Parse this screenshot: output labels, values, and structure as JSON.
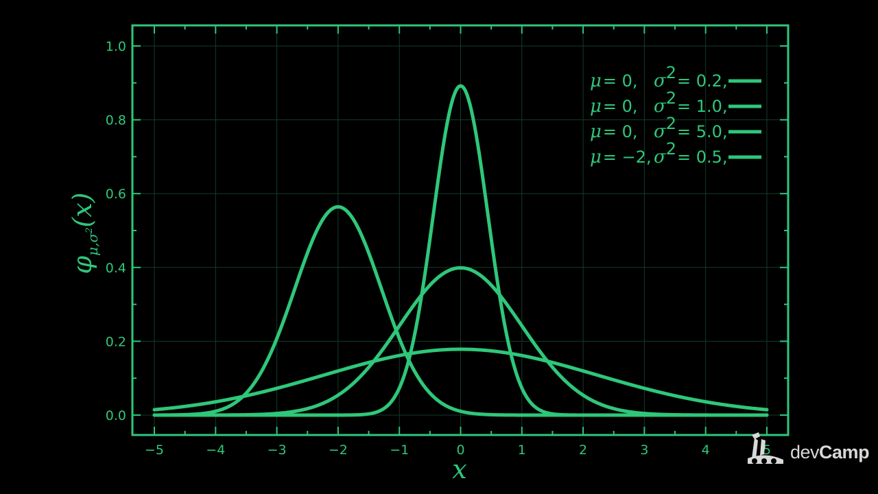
{
  "colors": {
    "background": "#000000",
    "accent": "#2fc77a",
    "grid": "#123d28",
    "logo": "#d8d8d8"
  },
  "chart_data": {
    "type": "line",
    "xlabel": "x",
    "ylabel": {
      "main": "φ",
      "sub_mu": "μ",
      "sub_sep": ",",
      "sub_sigma": "σ",
      "sub_sq": "2",
      "arg": "(x)"
    },
    "xlim": [
      -5,
      5
    ],
    "ylim": [
      0,
      1.0
    ],
    "xticks": [
      "−5",
      "−4",
      "−3",
      "−2",
      "−1",
      "0",
      "1",
      "2",
      "3",
      "4",
      "5"
    ],
    "yticks": [
      "0.0",
      "0.2",
      "0.4",
      "0.6",
      "0.8",
      "1.0"
    ],
    "grid": true,
    "legend_position": "top-right",
    "series": [
      {
        "name": "μ = 0, σ² = 0.2,",
        "mu": 0,
        "sigma2": 0.2,
        "mu_text": "0,",
        "sigma2_text": "0.2,"
      },
      {
        "name": "μ = 0, σ² = 1.0,",
        "mu": 0,
        "sigma2": 1.0,
        "mu_text": "0,",
        "sigma2_text": "1.0,"
      },
      {
        "name": "μ = 0, σ² = 5.0,",
        "mu": 0,
        "sigma2": 5.0,
        "mu_text": "0,",
        "sigma2_text": "5.0,"
      },
      {
        "name": "μ = −2, σ² = 0.5,",
        "mu": -2,
        "sigma2": 0.5,
        "mu_text": "−2,",
        "sigma2_text": "0.5,"
      }
    ],
    "legend_symbols": {
      "mu": "μ",
      "sigma": "σ",
      "sq": "2",
      "eq": "="
    }
  },
  "logo": {
    "brand_light": "dev",
    "brand_bold": "Camp"
  }
}
